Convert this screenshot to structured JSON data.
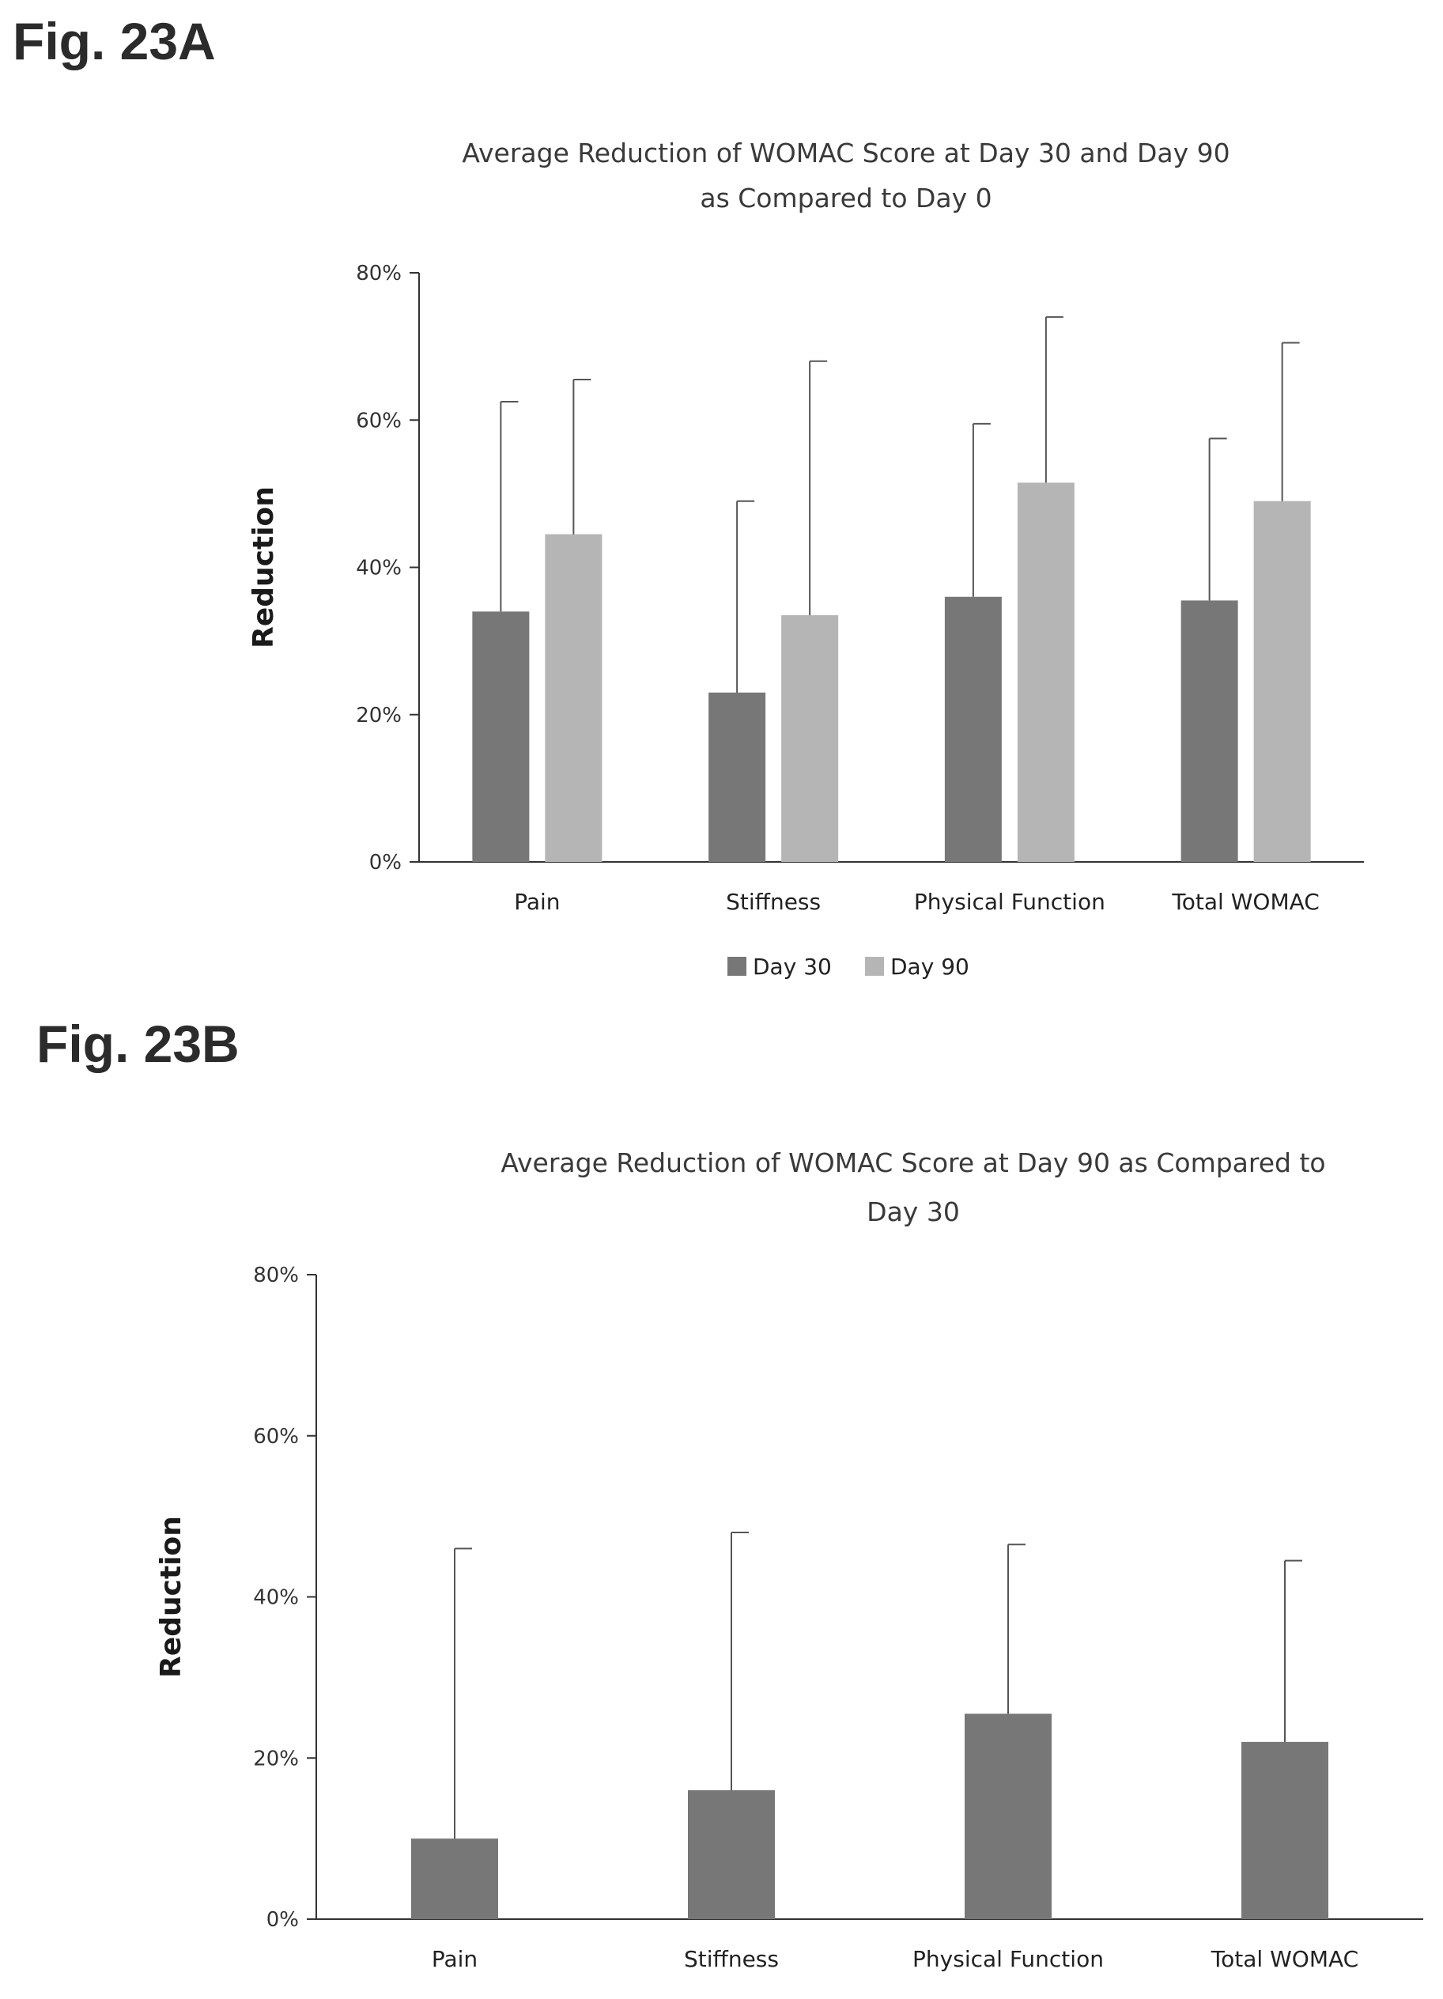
{
  "figures": {
    "a_label": "Fig. 23A",
    "b_label": "Fig. 23B"
  },
  "colors": {
    "day30": "#777777",
    "day90": "#b5b5b5",
    "axis": "#333333",
    "error_bar": "#555555"
  },
  "chart_data": [
    {
      "type": "bar",
      "title": "Average Reduction of WOMAC Score at Day 30 and Day 90 as Compared to Day 0",
      "title_lines": [
        "Average Reduction of WOMAC Score at Day 30 and Day 90",
        "as Compared to Day 0"
      ],
      "xlabel": "",
      "ylabel": "Reduction",
      "ylim": [
        0,
        80
      ],
      "yticks": [
        0,
        20,
        40,
        60,
        80
      ],
      "ytick_labels": [
        "0%",
        "20%",
        "40%",
        "60%",
        "80%"
      ],
      "categories": [
        "Pain",
        "Stiffness",
        "Physical Function",
        "Total WOMAC"
      ],
      "series": [
        {
          "name": "Day 30",
          "values": [
            34,
            23,
            36,
            35.5
          ],
          "error_upper": [
            62.5,
            49,
            59.5,
            57.5
          ],
          "color": "#777777"
        },
        {
          "name": "Day 90",
          "values": [
            44.5,
            33.5,
            51.5,
            49
          ],
          "error_upper": [
            65.5,
            68,
            74,
            70.5
          ],
          "color": "#b5b5b5"
        }
      ],
      "grid": false,
      "legend": "bottom"
    },
    {
      "type": "bar",
      "title": "Average Reduction of WOMAC Score at Day 90 as Compared to Day 30",
      "title_lines": [
        "Average Reduction of WOMAC Score at Day 90 as Compared to",
        "Day 30"
      ],
      "xlabel": "",
      "ylabel": "Reduction",
      "ylim": [
        0,
        80
      ],
      "yticks": [
        0,
        20,
        40,
        60,
        80
      ],
      "ytick_labels": [
        "0%",
        "20%",
        "40%",
        "60%",
        "80%"
      ],
      "categories": [
        "Pain",
        "Stiffness",
        "Physical Function",
        "Total WOMAC"
      ],
      "series": [
        {
          "values": [
            10,
            16,
            25.5,
            22
          ],
          "error_upper": [
            46,
            48,
            46.5,
            44.5
          ],
          "color": "#777777"
        }
      ],
      "grid": false,
      "legend": "none"
    }
  ]
}
